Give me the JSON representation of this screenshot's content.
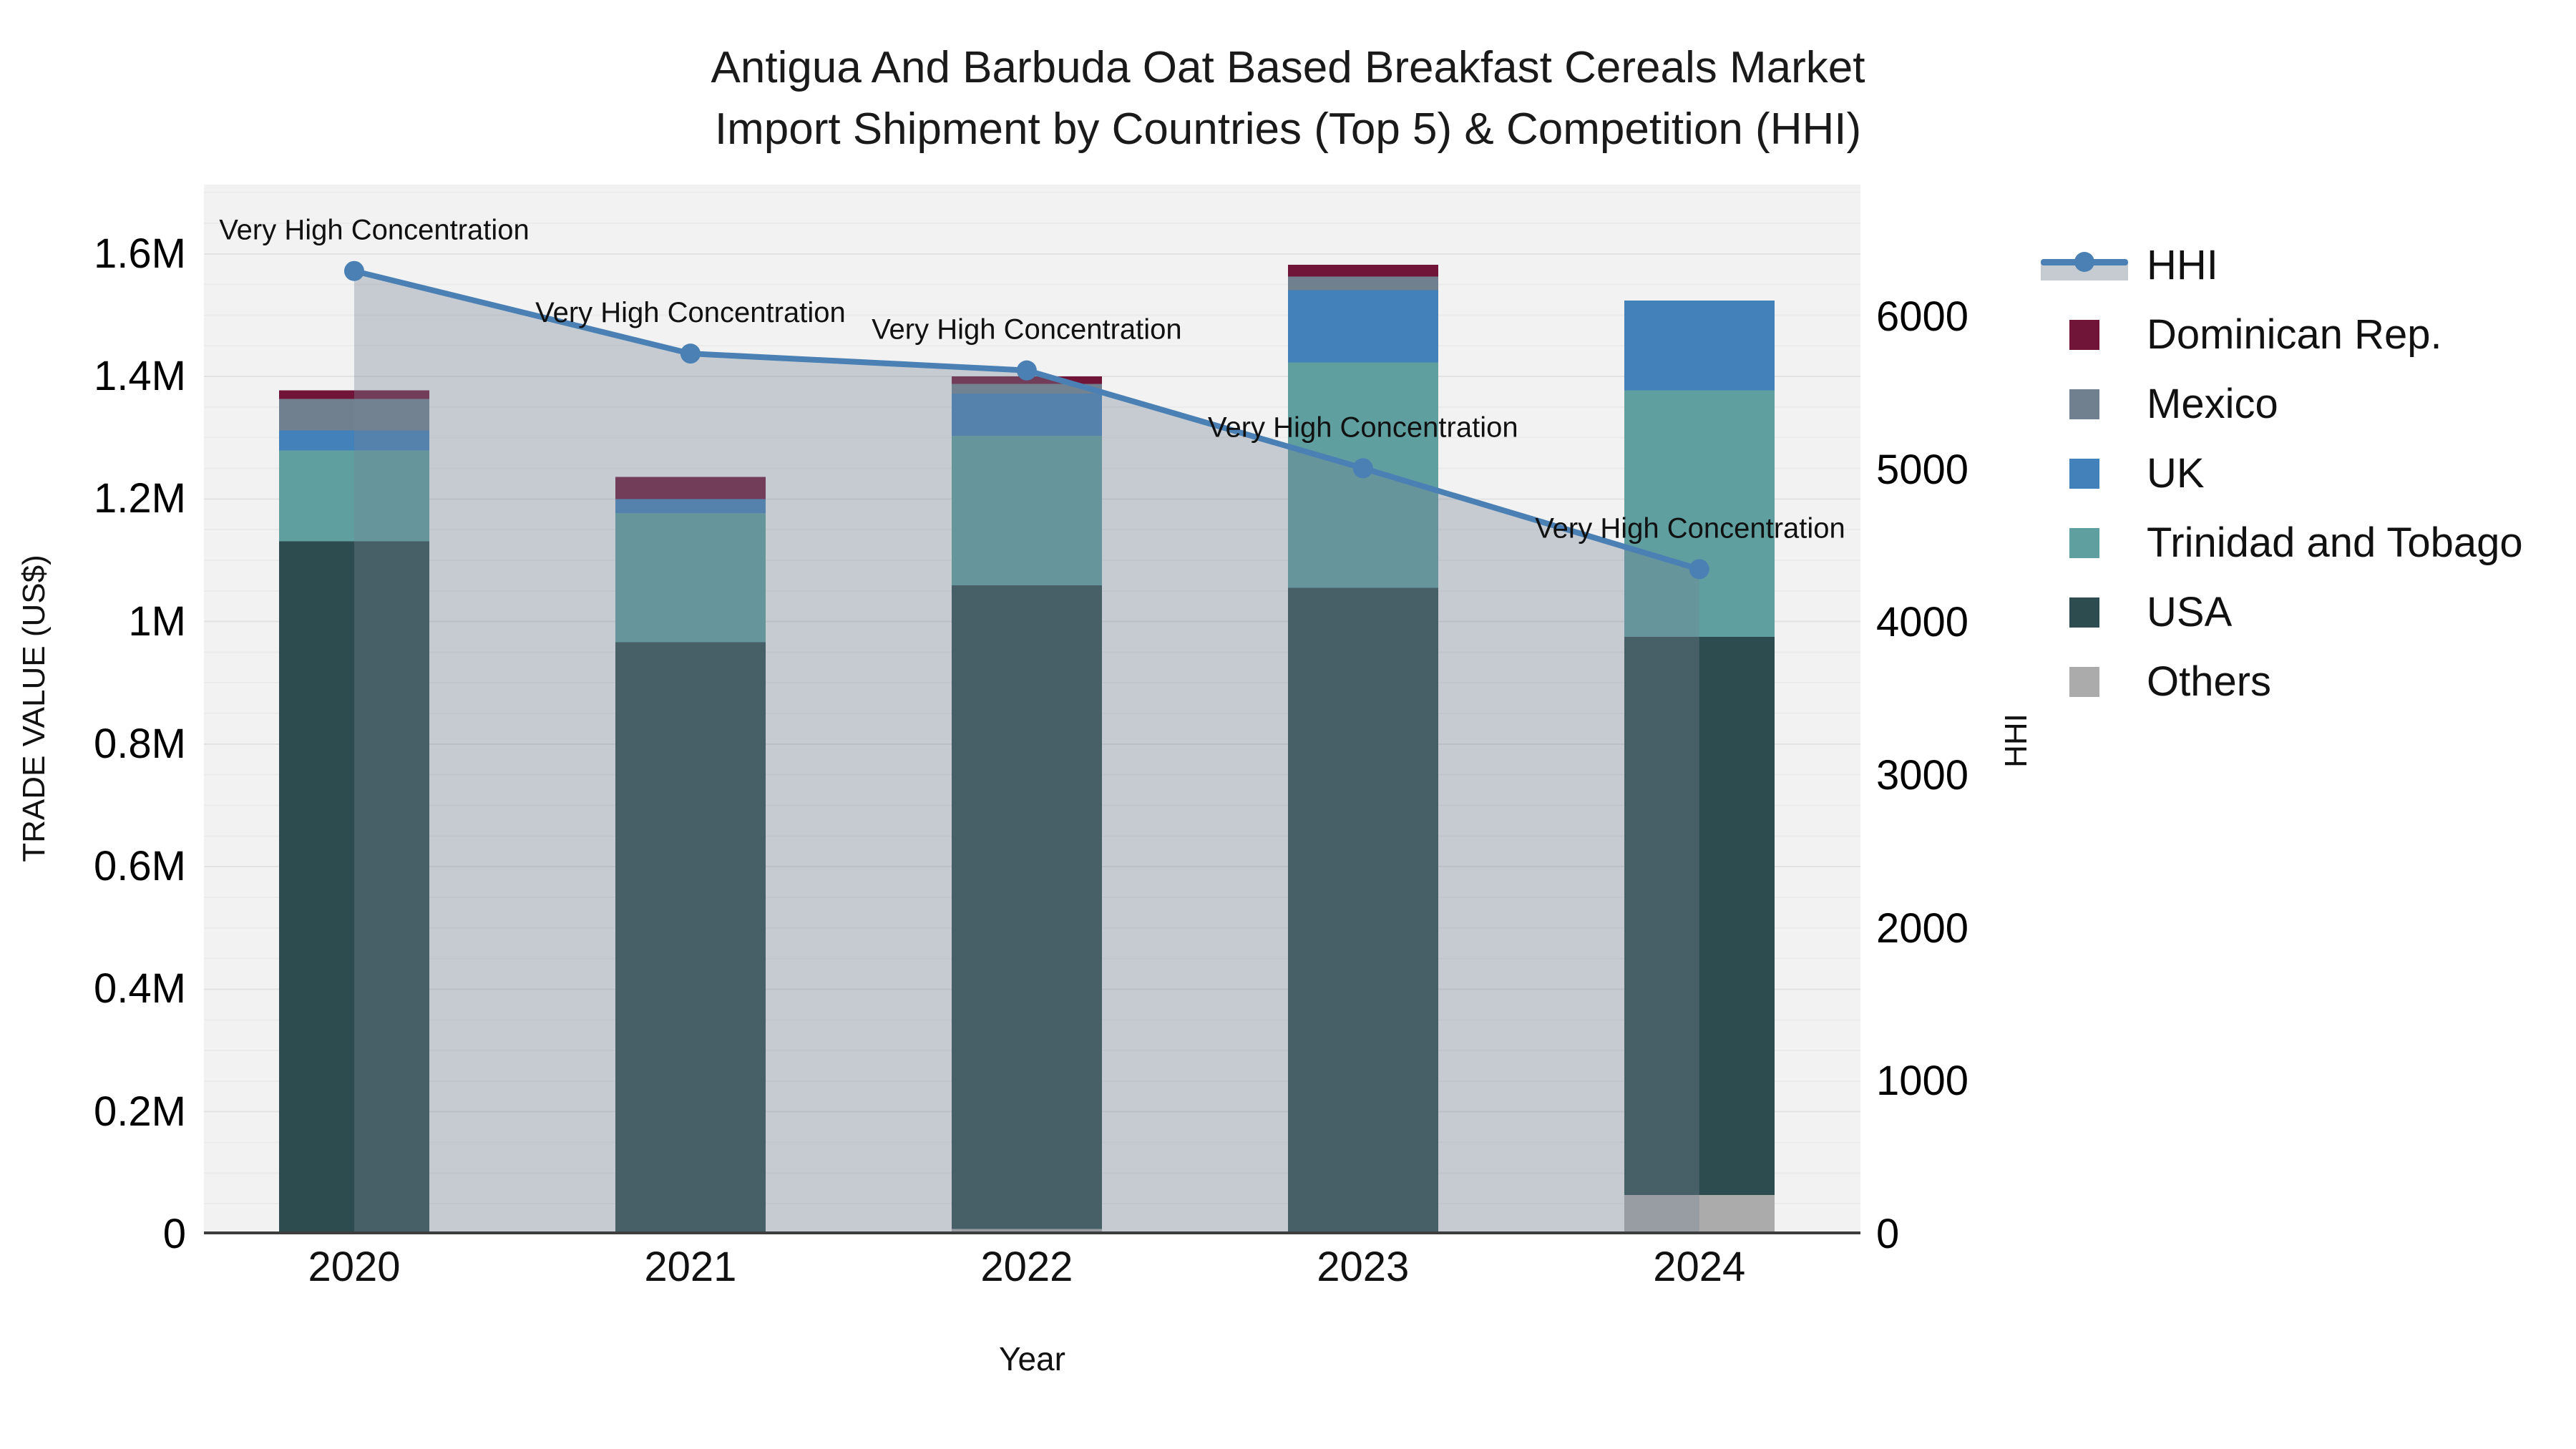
{
  "title": {
    "line1": "Antigua And Barbuda Oat Based Breakfast Cereals Market",
    "line2": "Import Shipment by Countries (Top 5) & Competition (HHI)"
  },
  "chart_data": {
    "type": "bar",
    "subtype": "stacked-bars-with-line-overlay",
    "title": "Antigua And Barbuda Oat Based Breakfast Cereals Market Import Shipment by Countries (Top 5) & Competition (HHI)",
    "xlabel": "Year",
    "ylabel_left": "TRADE VALUE (US$)",
    "ylabel_right": "HHI",
    "categories": [
      "2020",
      "2021",
      "2022",
      "2023",
      "2024"
    ],
    "series": [
      {
        "name": "Others",
        "color": "#ababab",
        "values": [
          0,
          0,
          9000,
          0,
          64000
        ]
      },
      {
        "name": "USA",
        "color": "#2d4c4f",
        "values": [
          1131000,
          966000,
          1050000,
          1055000,
          911000
        ]
      },
      {
        "name": "Trinidad and Tobago",
        "color": "#5f9fa0",
        "values": [
          148000,
          211000,
          244000,
          368000,
          402000
        ]
      },
      {
        "name": "UK",
        "color": "#4381ba",
        "values": [
          33000,
          23000,
          69000,
          118000,
          147000
        ]
      },
      {
        "name": "Mexico",
        "color": "#71808f",
        "values": [
          51000,
          0,
          16000,
          22000,
          0
        ]
      },
      {
        "name": "Dominican Rep.",
        "color": "#701538",
        "values": [
          14000,
          36000,
          12000,
          19000,
          0
        ]
      }
    ],
    "bar_totals": [
      1377000,
      1236000,
      1400000,
      1582000,
      1524000
    ],
    "line_series": {
      "name": "HHI",
      "color": "#4a80b4",
      "area_color": "rgba(120,132,150,0.36)",
      "values": [
        6300,
        5760,
        5650,
        5010,
        4350
      ]
    },
    "annotations": [
      {
        "text": "Very High Concentration",
        "point_index": 0
      },
      {
        "text": "Very High Concentration",
        "point_index": 1
      },
      {
        "text": "Very High Concentration",
        "point_index": 2
      },
      {
        "text": "Very High Concentration",
        "point_index": 3
      },
      {
        "text": "Very High Concentration",
        "point_index": 4
      }
    ],
    "ylim_left": [
      0,
      1713000
    ],
    "ylim_right": [
      0,
      6865
    ],
    "yticks_left": [
      {
        "value": 0,
        "label": "0"
      },
      {
        "value": 200000,
        "label": "0.2M"
      },
      {
        "value": 400000,
        "label": "0.4M"
      },
      {
        "value": 600000,
        "label": "0.6M"
      },
      {
        "value": 800000,
        "label": "0.8M"
      },
      {
        "value": 1000000,
        "label": "1M"
      },
      {
        "value": 1200000,
        "label": "1.2M"
      },
      {
        "value": 1400000,
        "label": "1.4M"
      },
      {
        "value": 1600000,
        "label": "1.6M"
      }
    ],
    "yticks_right": [
      {
        "value": 0,
        "label": "0"
      },
      {
        "value": 1000,
        "label": "1000"
      },
      {
        "value": 2000,
        "label": "2000"
      },
      {
        "value": 3000,
        "label": "3000"
      },
      {
        "value": 4000,
        "label": "4000"
      },
      {
        "value": 5000,
        "label": "5000"
      },
      {
        "value": 6000,
        "label": "6000"
      }
    ],
    "grid": {
      "horizontal_major_step": 200000,
      "horizontal_minor_step": 50000,
      "legend_position": "right"
    },
    "colors": {
      "plot_background": "#f2f2f2",
      "axis_line": "#3d3d3d",
      "major_grid": "#e2e2e2",
      "minor_grid": "#ebebeb",
      "annotation_text": "#111111"
    }
  },
  "legend": {
    "items": [
      {
        "label": "HHI",
        "type": "line",
        "color": "#4a80b4",
        "band_color": "#c6cad1"
      },
      {
        "label": "Dominican Rep.",
        "type": "patch",
        "color": "#701538"
      },
      {
        "label": "Mexico",
        "type": "patch",
        "color": "#71808f"
      },
      {
        "label": "UK",
        "type": "patch",
        "color": "#4381ba"
      },
      {
        "label": "Trinidad and Tobago",
        "type": "patch",
        "color": "#5f9fa0"
      },
      {
        "label": "USA",
        "type": "patch",
        "color": "#2d4c4f"
      },
      {
        "label": "Others",
        "type": "patch",
        "color": "#ababab"
      }
    ]
  }
}
